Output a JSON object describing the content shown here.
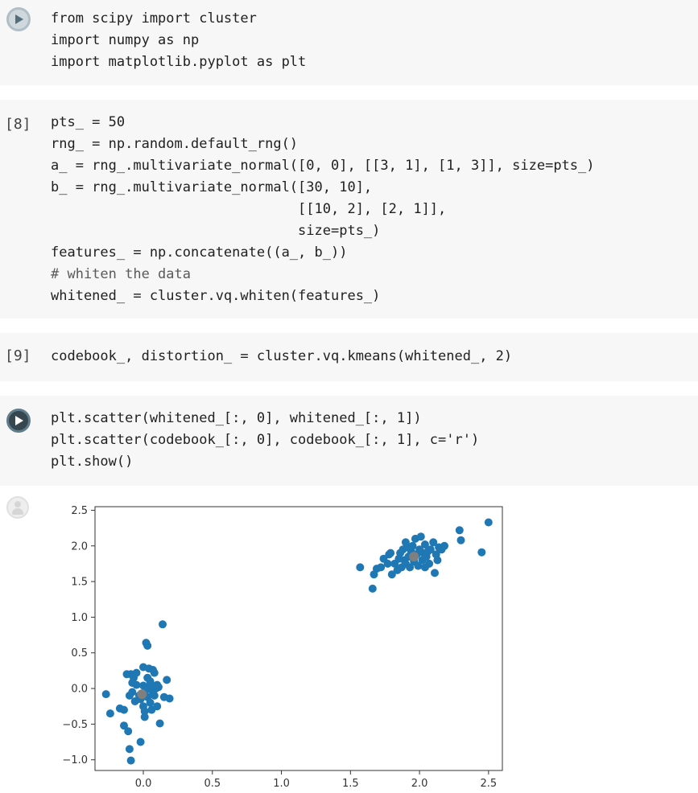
{
  "cells": [
    {
      "exec_count": "",
      "lines": [
        "from scipy import cluster",
        "import numpy as np",
        "import matplotlib.pyplot as plt"
      ]
    },
    {
      "exec_count": "[8]",
      "lines": [
        "pts_ = 50",
        "rng_ = np.random.default_rng()",
        "a_ = rng_.multivariate_normal([0, 0], [[3, 1], [1, 3]], size=pts_)",
        "b_ = rng_.multivariate_normal([30, 10],",
        "                              [[10, 2], [2, 1]],",
        "                              size=pts_)",
        "features_ = np.concatenate((a_, b_))",
        "# whiten the data",
        "whitened_ = cluster.vq.whiten(features_)"
      ]
    },
    {
      "exec_count": "[9]",
      "lines": [
        "codebook_, distortion_ = cluster.vq.kmeans(whitened_, 2)"
      ]
    },
    {
      "exec_count": "",
      "lines": [
        "plt.scatter(whitened_[:, 0], whitened_[:, 1])",
        "plt.scatter(codebook_[:, 0], codebook_[:, 1], c='r')",
        "plt.show()"
      ]
    }
  ],
  "icons": {
    "run": "play-icon",
    "output": "user-avatar-icon"
  },
  "chart_data": {
    "type": "scatter",
    "xlim": [
      -0.35,
      2.6
    ],
    "ylim": [
      -1.15,
      2.55
    ],
    "xticks": [
      "0.0",
      "0.5",
      "1.0",
      "1.5",
      "2.0",
      "2.5"
    ],
    "yticks": [
      "-1.0",
      "-0.5",
      "0.0",
      "0.5",
      "1.0",
      "1.5",
      "2.0",
      "2.5"
    ],
    "grid": false,
    "series": [
      {
        "color": "#1f77b4",
        "points": [
          [
            -0.27,
            -0.08
          ],
          [
            -0.24,
            -0.35
          ],
          [
            -0.17,
            -0.28
          ],
          [
            -0.14,
            -0.3
          ],
          [
            -0.14,
            -0.52
          ],
          [
            -0.11,
            -0.6
          ],
          [
            -0.1,
            -0.85
          ],
          [
            -0.09,
            -1.01
          ],
          [
            -0.1,
            -0.1
          ],
          [
            -0.08,
            -0.05
          ],
          [
            -0.09,
            0.2
          ],
          [
            -0.07,
            0.15
          ],
          [
            -0.06,
            -0.18
          ],
          [
            -0.05,
            0.05
          ],
          [
            -0.03,
            -0.1
          ],
          [
            -0.02,
            -0.15
          ],
          [
            -0.02,
            -0.75
          ],
          [
            0.0,
            0.3
          ],
          [
            0.0,
            0.04
          ],
          [
            0.0,
            -0.25
          ],
          [
            0.01,
            -0.32
          ],
          [
            0.01,
            -0.4
          ],
          [
            0.02,
            0.64
          ],
          [
            0.03,
            0.6
          ],
          [
            0.03,
            0.15
          ],
          [
            0.03,
            0.02
          ],
          [
            0.03,
            -0.12
          ],
          [
            0.04,
            0.28
          ],
          [
            0.05,
            0.1
          ],
          [
            0.05,
            -0.2
          ],
          [
            0.06,
            -0.3
          ],
          [
            0.07,
            0.26
          ],
          [
            0.07,
            -0.05
          ],
          [
            0.08,
            0.22
          ],
          [
            0.08,
            -0.1
          ],
          [
            0.09,
            0.0
          ],
          [
            0.1,
            0.05
          ],
          [
            0.1,
            -0.25
          ],
          [
            0.11,
            0.02
          ],
          [
            0.12,
            -0.49
          ],
          [
            0.14,
            0.9
          ],
          [
            0.15,
            -0.12
          ],
          [
            0.17,
            0.12
          ],
          [
            0.19,
            -0.14
          ],
          [
            -0.08,
            0.08
          ],
          [
            -0.05,
            0.22
          ],
          [
            0.02,
            -0.02
          ],
          [
            0.06,
            0.05
          ],
          [
            -0.12,
            0.2
          ],
          [
            0.0,
            -0.08
          ],
          [
            1.57,
            1.7
          ],
          [
            1.66,
            1.4
          ],
          [
            1.67,
            1.6
          ],
          [
            1.69,
            1.68
          ],
          [
            1.72,
            1.7
          ],
          [
            1.74,
            1.82
          ],
          [
            1.77,
            1.75
          ],
          [
            1.78,
            1.88
          ],
          [
            1.79,
            1.9
          ],
          [
            1.8,
            1.6
          ],
          [
            1.82,
            1.75
          ],
          [
            1.84,
            1.66
          ],
          [
            1.85,
            1.82
          ],
          [
            1.86,
            1.9
          ],
          [
            1.87,
            1.7
          ],
          [
            1.88,
            1.95
          ],
          [
            1.89,
            1.8
          ],
          [
            1.9,
            1.75
          ],
          [
            1.91,
            1.98
          ],
          [
            1.92,
            1.85
          ],
          [
            1.93,
            1.7
          ],
          [
            1.94,
            1.92
          ],
          [
            1.95,
            2.0
          ],
          [
            1.96,
            1.78
          ],
          [
            1.97,
            2.1
          ],
          [
            1.98,
            1.88
          ],
          [
            1.99,
            1.72
          ],
          [
            2.0,
            1.95
          ],
          [
            2.01,
            2.13
          ],
          [
            2.02,
            1.8
          ],
          [
            2.03,
            1.9
          ],
          [
            2.04,
            1.7
          ],
          [
            2.05,
            1.85
          ],
          [
            2.06,
            1.92
          ],
          [
            2.07,
            1.75
          ],
          [
            2.08,
            1.95
          ],
          [
            2.1,
            2.05
          ],
          [
            2.11,
            1.62
          ],
          [
            2.12,
            1.88
          ],
          [
            2.13,
            1.8
          ],
          [
            2.14,
            1.98
          ],
          [
            2.16,
            1.95
          ],
          [
            2.18,
            2.0
          ],
          [
            2.29,
            2.22
          ],
          [
            2.3,
            2.08
          ],
          [
            2.45,
            1.91
          ],
          [
            2.5,
            2.33
          ],
          [
            1.9,
            2.05
          ],
          [
            2.04,
            2.02
          ],
          [
            1.95,
            1.87
          ]
        ]
      },
      {
        "color": "#7f7f7f",
        "points": [
          [
            -0.01,
            -0.08
          ],
          [
            1.96,
            1.85
          ]
        ]
      }
    ]
  }
}
